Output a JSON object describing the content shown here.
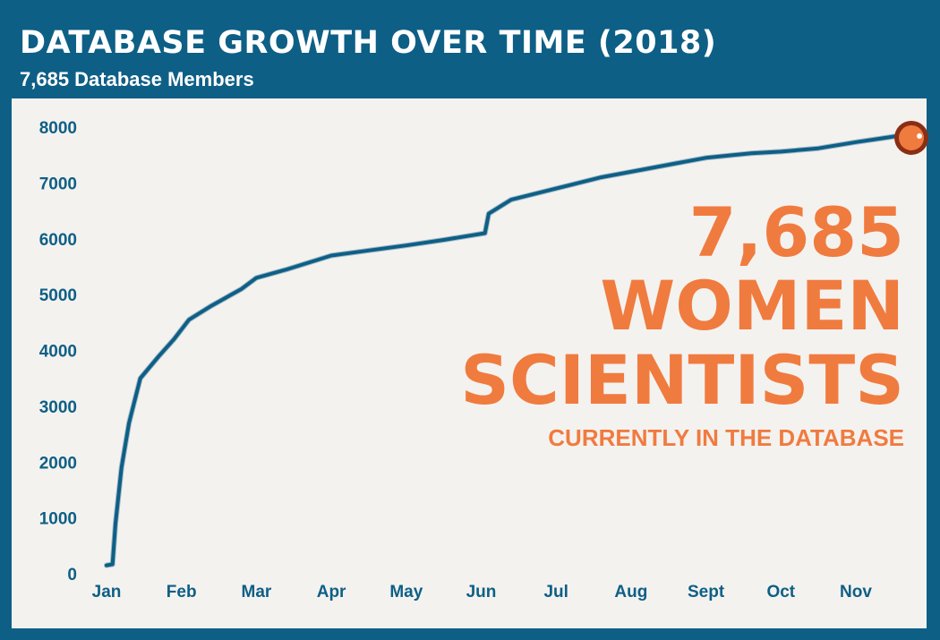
{
  "header": {
    "title": "DATABASE GROWTH OVER TIME (2018)",
    "subtitle": "7,685 Database Members"
  },
  "callout": {
    "number": "7,685",
    "line2": "WOMEN",
    "line3": "SCIENTISTS",
    "caption": "CURRENTLY IN THE DATABASE"
  },
  "colors": {
    "frame": "#0e5f86",
    "panel": "#f4f2ef",
    "line": "#0e5f86",
    "accent": "#f07b3f",
    "marker_edge": "#8a2e14"
  },
  "chart_data": {
    "type": "line",
    "title": "DATABASE GROWTH OVER TIME (2018)",
    "subtitle": "7,685 Database Members",
    "xlabel": "",
    "ylabel": "",
    "categories": [
      "Jan",
      "Feb",
      "Mar",
      "Apr",
      "May",
      "Jun",
      "Jul",
      "Aug",
      "Sept",
      "Oct",
      "Nov"
    ],
    "ylim": [
      0,
      8000
    ],
    "yticks": [
      0,
      1000,
      2000,
      3000,
      4000,
      5000,
      6000,
      7000,
      8000
    ],
    "grid": false,
    "legend": "none",
    "end_marker": true,
    "series": [
      {
        "values": [
          [
            0.0,
            150
          ],
          [
            0.08,
            170
          ],
          [
            0.12,
            900
          ],
          [
            0.2,
            1900
          ],
          [
            0.3,
            2700
          ],
          [
            0.45,
            3500
          ],
          [
            0.7,
            3900
          ],
          [
            0.9,
            4200
          ],
          [
            1.1,
            4550
          ],
          [
            1.4,
            4800
          ],
          [
            1.6,
            4950
          ],
          [
            1.8,
            5100
          ],
          [
            2.0,
            5300
          ],
          [
            2.4,
            5450
          ],
          [
            3.0,
            5700
          ],
          [
            3.5,
            5790
          ],
          [
            4.0,
            5880
          ],
          [
            4.5,
            5980
          ],
          [
            5.05,
            6100
          ],
          [
            5.1,
            6450
          ],
          [
            5.4,
            6700
          ],
          [
            6.0,
            6900
          ],
          [
            6.6,
            7100
          ],
          [
            7.0,
            7200
          ],
          [
            7.6,
            7350
          ],
          [
            8.0,
            7450
          ],
          [
            8.6,
            7530
          ],
          [
            9.0,
            7560
          ],
          [
            9.5,
            7620
          ],
          [
            10.0,
            7730
          ],
          [
            10.35,
            7800
          ],
          [
            10.55,
            7840
          ]
        ]
      }
    ]
  }
}
